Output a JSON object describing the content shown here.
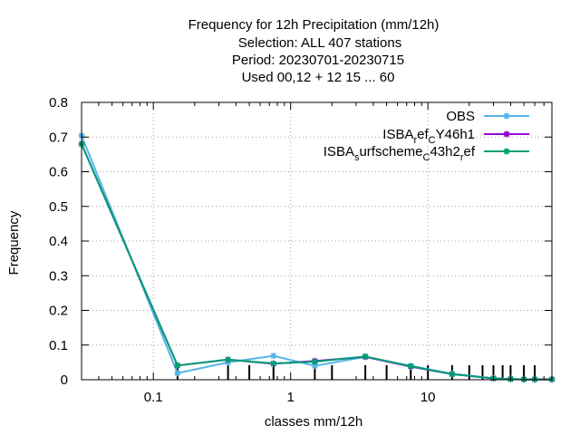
{
  "title_lines": [
    "Frequency  for 12h Precipitation (mm/12h)",
    "Selection: ALL    407 stations",
    "Period: 20230701-20230715",
    "Used  00,12  + 12 15 ... 60"
  ],
  "chart_data": {
    "type": "line",
    "xlabel": "classes mm/12h",
    "ylabel": "Frequency",
    "xscale": "log",
    "xlim": [
      0.03,
      80
    ],
    "ylim": [
      0,
      0.8
    ],
    "x_ticks": [
      0.1,
      1,
      10
    ],
    "x_tick_labels": [
      "0.1",
      "1",
      "10"
    ],
    "y_ticks": [
      0,
      0.1,
      0.2,
      0.3,
      0.4,
      0.5,
      0.6,
      0.7,
      0.8
    ],
    "y_tick_labels": [
      "0",
      "0.1",
      "0.2",
      "0.3",
      "0.4",
      "0.5",
      "0.6",
      "0.7",
      "0.8"
    ],
    "grid": true,
    "legend_position": "top-right",
    "class_marks": [
      0.15,
      0.35,
      0.5,
      0.75,
      1.5,
      2,
      3.5,
      5,
      7.5,
      10,
      15,
      20,
      25,
      30,
      35,
      40,
      50,
      60
    ],
    "x": [
      0.03,
      0.15,
      0.35,
      0.75,
      1.5,
      3.5,
      7.5,
      15,
      30,
      40,
      50,
      60,
      80
    ],
    "series": [
      {
        "name": "OBS",
        "color": "#56b4e9",
        "marker": "star",
        "values": [
          0.704,
          0.019,
          0.05,
          0.069,
          0.04,
          0.066,
          0.04,
          0.017,
          0.004,
          0.002,
          0.001,
          0.001,
          0.001
        ]
      },
      {
        "name_parts": [
          "ISBA",
          "r",
          "ef",
          "C",
          "Y46h1"
        ],
        "color": "#9400d3",
        "marker": "star",
        "values": [
          0.68,
          0.041,
          0.058,
          0.046,
          0.054,
          0.066,
          0.038,
          0.016,
          0.004,
          0.002,
          0.001,
          0.001,
          0.001
        ]
      },
      {
        "name_parts": [
          "ISBA",
          "s",
          "urfscheme",
          "C",
          "43h2",
          "r",
          "ef"
        ],
        "color": "#009e73",
        "marker": "star",
        "values": [
          0.68,
          0.041,
          0.058,
          0.047,
          0.052,
          0.067,
          0.039,
          0.016,
          0.004,
          0.002,
          0.001,
          0.001,
          0.001
        ]
      }
    ]
  }
}
